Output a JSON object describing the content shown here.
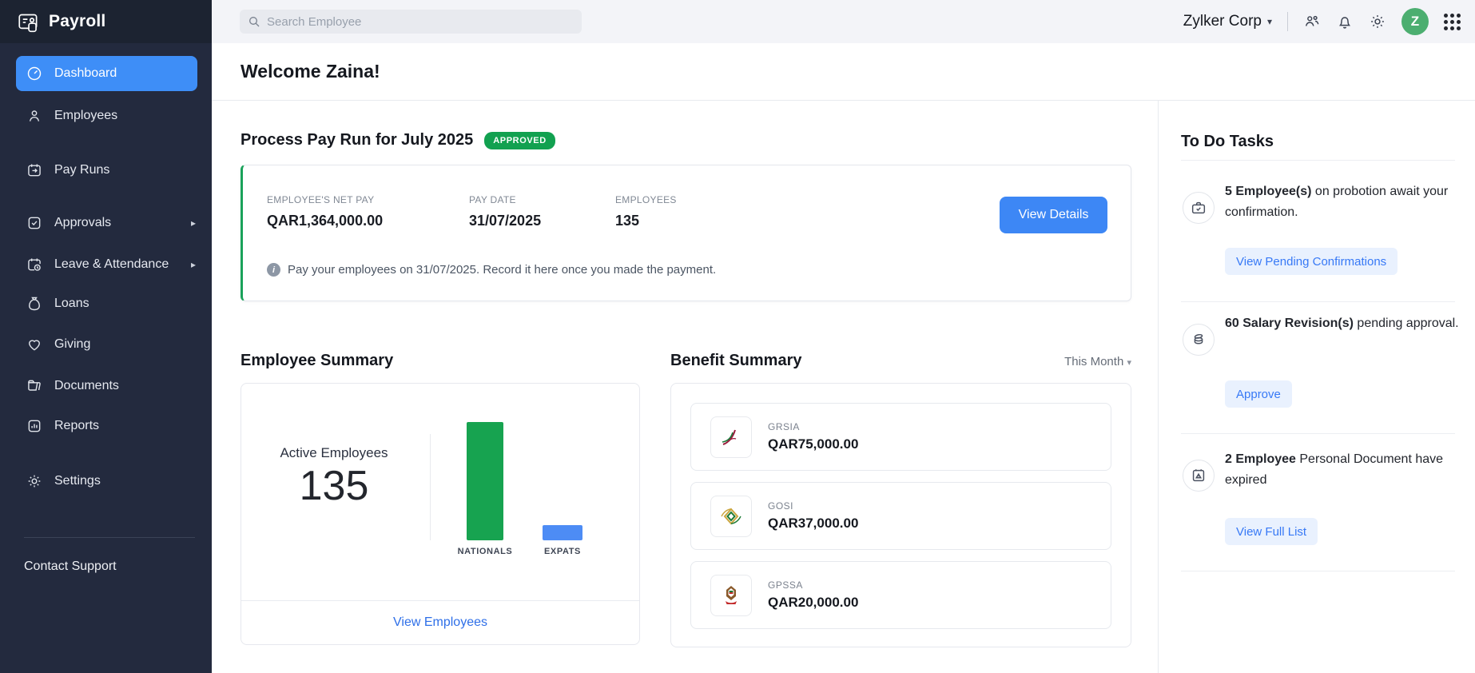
{
  "app": {
    "name": "Payroll"
  },
  "topbar": {
    "search_placeholder": "Search Employee",
    "org_name": "Zylker Corp",
    "avatar_initial": "Z"
  },
  "sidebar": {
    "items": [
      {
        "label": "Dashboard",
        "icon": "dashboard-icon",
        "active": true
      },
      {
        "label": "Employees",
        "icon": "employees-icon",
        "active": false
      },
      {
        "label": "Pay Runs",
        "icon": "payruns-icon",
        "active": false
      },
      {
        "label": "Approvals",
        "icon": "approvals-icon",
        "active": false,
        "has_submenu": true
      },
      {
        "label": "Leave & Attendance",
        "icon": "leave-attendance-icon",
        "active": false,
        "has_submenu": true
      },
      {
        "label": "Loans",
        "icon": "loans-icon",
        "active": false
      },
      {
        "label": "Giving",
        "icon": "giving-icon",
        "active": false
      },
      {
        "label": "Documents",
        "icon": "documents-icon",
        "active": false
      },
      {
        "label": "Reports",
        "icon": "reports-icon",
        "active": false
      },
      {
        "label": "Settings",
        "icon": "settings-icon",
        "active": false
      }
    ],
    "support_label": "Contact Support"
  },
  "header": {
    "welcome": "Welcome Zaina!"
  },
  "payrun": {
    "title": "Process Pay Run for July 2025",
    "status_badge": "APPROVED",
    "stats": [
      {
        "label": "EMPLOYEE'S NET PAY",
        "value": "QAR1,364,000.00"
      },
      {
        "label": "PAY DATE",
        "value": "31/07/2025"
      },
      {
        "label": "EMPLOYEES",
        "value": "135"
      }
    ],
    "view_details_label": "View Details",
    "info_note": "Pay your employees on 31/07/2025. Record it here once you made the payment."
  },
  "employee_summary": {
    "title": "Employee Summary",
    "active_label": "Active Employees",
    "active_count": "135",
    "link_label": "View Employees"
  },
  "chart_data": {
    "type": "bar",
    "title": "Employee Summary",
    "categories": [
      "NATIONALS",
      "EXPATS"
    ],
    "values": [
      120,
      15
    ],
    "estimated": true,
    "total_active_employees": 135,
    "colors": [
      "#17a350",
      "#4d8cf5"
    ],
    "xlabel": "",
    "ylabel": "",
    "axis_labels_visible": false,
    "grid": false,
    "legend": "none"
  },
  "benefit_summary": {
    "title": "Benefit Summary",
    "period_label": "This Month",
    "items": [
      {
        "name": "GRSIA",
        "amount": "QAR75,000.00",
        "icon": "grsia-logo"
      },
      {
        "name": "GOSI",
        "amount": "QAR37,000.00",
        "icon": "gosi-logo"
      },
      {
        "name": "GPSSA",
        "amount": "QAR20,000.00",
        "icon": "gpssa-logo"
      }
    ]
  },
  "todo": {
    "title": "To Do Tasks",
    "tasks": [
      {
        "lead": "5 Employee(s)",
        "rest": " on probotion await your confirmation.",
        "action": "View Pending Confirmations",
        "icon": "briefcase-check-icon"
      },
      {
        "lead": "60 Salary Revision(s)",
        "rest": " pending approval.",
        "action": "Approve",
        "icon": "coins-icon"
      },
      {
        "lead": "2 Employee",
        "rest": " Personal Document have expired",
        "action": "View Full List",
        "icon": "calendar-alert-icon"
      }
    ]
  },
  "colors": {
    "sidebar_bg": "#232a3e",
    "sidebar_active": "#3e8ef7",
    "badge_green": "#12a150",
    "card_accent_green": "#1aa25a",
    "primary_button": "#3d87f5",
    "link_blue": "#2e6fe8",
    "soft_button_bg": "#e9f1fe",
    "avatar_green": "#4cae70"
  }
}
